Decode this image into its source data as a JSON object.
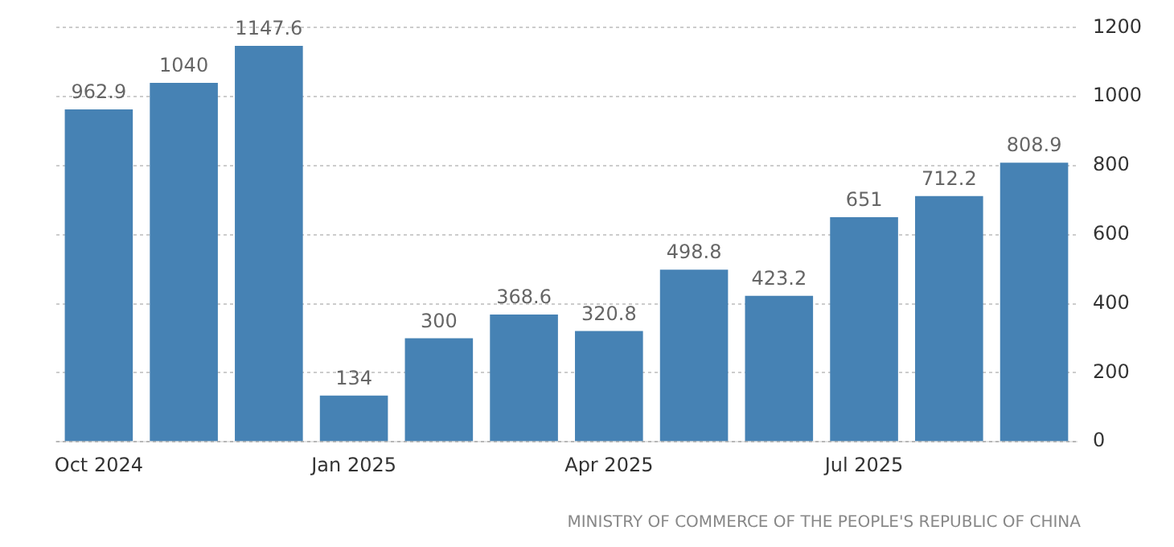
{
  "chart_data": {
    "type": "bar",
    "categories": [
      "Oct 2024",
      null,
      null,
      "Jan 2025",
      null,
      null,
      "Apr 2025",
      null,
      null,
      "Jul 2025",
      null,
      null
    ],
    "values": [
      962.9,
      1040,
      1147.6,
      134,
      300,
      368.6,
      320.8,
      498.8,
      423.2,
      651,
      712.2,
      808.9
    ],
    "color": "#4682b4",
    "ylim": [
      0,
      1200
    ],
    "yticks": [
      0,
      200,
      400,
      600,
      800,
      1000,
      1200
    ],
    "grid": "y",
    "data_labels": true,
    "legend": false,
    "annotations": [
      "MINISTRY OF COMMERCE OF THE PEOPLE'S REPUBLIC OF CHINA"
    ]
  }
}
